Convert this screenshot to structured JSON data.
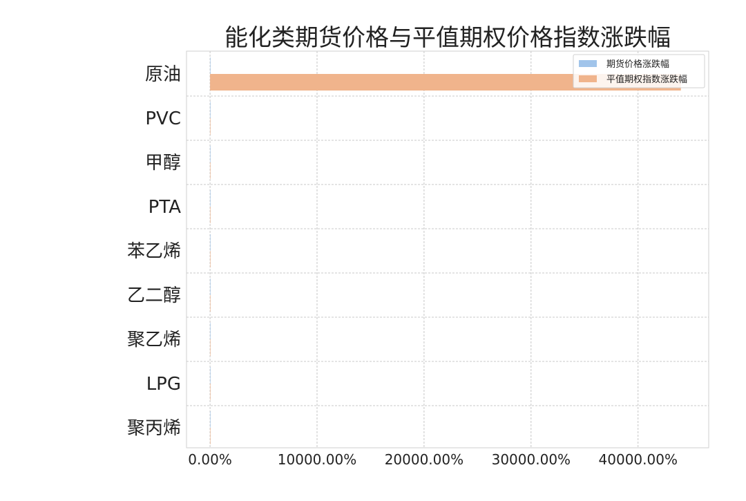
{
  "chart_data": {
    "type": "bar",
    "orientation": "horizontal",
    "title": "能化类期货价格与平值期权价格指数涨跌幅",
    "categories": [
      "原油",
      "PVC",
      "甲醇",
      "PTA",
      "苯乙烯",
      "乙二醇",
      "聚乙烯",
      "LPG",
      "聚丙烯"
    ],
    "series": [
      {
        "name": "期货价格涨跌幅",
        "color": "#a1c4ea",
        "values": [
          0,
          0,
          0,
          0,
          0,
          0,
          0,
          0,
          0
        ]
      },
      {
        "name": "平值期权指数涨跌幅",
        "color": "#f0b48c",
        "values": [
          44000,
          0,
          0,
          0,
          0,
          0,
          0,
          0,
          0
        ]
      }
    ],
    "xticks": [
      0,
      10000,
      20000,
      30000,
      40000
    ],
    "xtick_labels": [
      "0.00%",
      "10000.00%",
      "20000.00%",
      "30000.00%",
      "40000.00%"
    ],
    "xlim": [
      -2200,
      46600
    ],
    "xlabel": "",
    "ylabel": "",
    "grid": true,
    "legend_position": "top-right"
  }
}
